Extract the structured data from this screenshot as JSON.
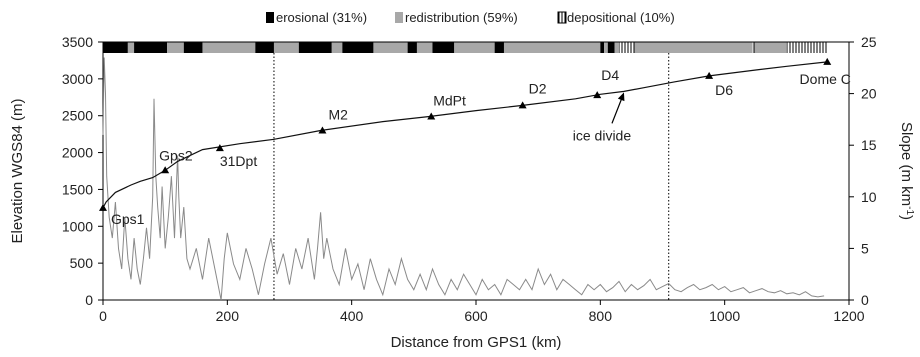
{
  "chart_data": {
    "type": "line",
    "title": "",
    "xlabel": "Distance from GPS1 (km)",
    "ylabel_left": "Elevation WGS84 (m)",
    "ylabel_right_main": "Slope (m km",
    "ylabel_right_sup": "-1",
    "ylabel_right_end": ")",
    "xlim": [
      0,
      1200
    ],
    "ylim_left": [
      0,
      3500
    ],
    "ylim_right": [
      0,
      25
    ],
    "x_ticks": [
      0,
      200,
      400,
      600,
      800,
      1000,
      1200
    ],
    "y_ticks_left": [
      0,
      500,
      1000,
      1500,
      2000,
      2500,
      3000,
      3500
    ],
    "y_ticks_right": [
      0,
      5,
      10,
      15,
      20,
      25
    ],
    "legend": {
      "position": "top-center",
      "items": [
        {
          "label": "erosional (31%)",
          "color": "#000000",
          "pattern": "solid"
        },
        {
          "label": "redistribution (59%)",
          "color": "#a8a8a8",
          "pattern": "solid"
        },
        {
          "label": "depositional (10%)",
          "color": "#ffffff",
          "pattern": "hatched"
        }
      ]
    },
    "vertical_dotted_lines": [
      275,
      910
    ],
    "series": [
      {
        "name": "",
        "axis": "left",
        "color": "#111111",
        "x": [
          0,
          5,
          20,
          45,
          60,
          80,
          100,
          120,
          160,
          220,
          275,
          350,
          450,
          525,
          600,
          675,
          760,
          800,
          838,
          870,
          920,
          975,
          1050,
          1100,
          1165
        ],
        "y": [
          1250,
          1330,
          1460,
          1560,
          1610,
          1660,
          1760,
          1880,
          2040,
          2120,
          2180,
          2300,
          2420,
          2490,
          2570,
          2640,
          2730,
          2790,
          2830,
          2880,
          2960,
          3040,
          3120,
          3170,
          3230
        ]
      },
      {
        "name": "",
        "axis": "right",
        "color": "#888888",
        "x": [
          0,
          2,
          4,
          6,
          10,
          15,
          20,
          25,
          30,
          35,
          40,
          45,
          50,
          55,
          60,
          65,
          70,
          75,
          80,
          82,
          85,
          88,
          92,
          95,
          100,
          105,
          110,
          115,
          118,
          120,
          122,
          125,
          130,
          135,
          140,
          150,
          160,
          170,
          180,
          190,
          195,
          200,
          210,
          220,
          230,
          240,
          250,
          260,
          270,
          280,
          290,
          300,
          310,
          320,
          330,
          340,
          345,
          350,
          355,
          360,
          370,
          380,
          390,
          400,
          410,
          420,
          430,
          440,
          450,
          460,
          470,
          480,
          490,
          500,
          510,
          520,
          530,
          540,
          550,
          560,
          570,
          580,
          590,
          600,
          610,
          620,
          630,
          640,
          650,
          660,
          670,
          680,
          690,
          700,
          710,
          720,
          730,
          740,
          750,
          760,
          770,
          780,
          790,
          800,
          810,
          820,
          830,
          840,
          850,
          860,
          870,
          880,
          890,
          900,
          910,
          920,
          930,
          940,
          950,
          960,
          970,
          980,
          990,
          1000,
          1010,
          1020,
          1030,
          1040,
          1050,
          1060,
          1070,
          1080,
          1090,
          1100,
          1110,
          1120,
          1130,
          1140,
          1150,
          1160
        ],
        "y": [
          16,
          23.5,
          20,
          12,
          8,
          6,
          9.5,
          5,
          3,
          8,
          4,
          2,
          6,
          3,
          1.5,
          4,
          7,
          4,
          10,
          19.5,
          12,
          9,
          6,
          11,
          5,
          8,
          12,
          6,
          11,
          14,
          10,
          6,
          9,
          4,
          3,
          5,
          2,
          6,
          3,
          0,
          4,
          6.5,
          3.5,
          2,
          5,
          3,
          0.5,
          3.5,
          6,
          2.5,
          4.5,
          1.5,
          5,
          3,
          6,
          2,
          5,
          8.5,
          4,
          6,
          3,
          1.5,
          5,
          2,
          3.5,
          1,
          4,
          2,
          0.5,
          3,
          1.5,
          4,
          2,
          1,
          2.5,
          1,
          3,
          1.5,
          0.5,
          2,
          1,
          2.5,
          1.5,
          0.5,
          2,
          1,
          1.5,
          0.5,
          2,
          1.5,
          1,
          2,
          1,
          3,
          1.5,
          2.5,
          1,
          2,
          1.5,
          1,
          0.5,
          1.5,
          1,
          1.5,
          0.8,
          1.2,
          1.8,
          0.8,
          1.5,
          1,
          1.4,
          2,
          1,
          1.3,
          1.6,
          1,
          0.8,
          1.2,
          1.5,
          1,
          1.2,
          1.5,
          1,
          1.3,
          0.8,
          1,
          1.2,
          0.7,
          0.9,
          1.1,
          0.8,
          0.7,
          0.9,
          0.6,
          0.7,
          0.5,
          0.8,
          0.4,
          0.3,
          0.4
        ]
      }
    ],
    "markers": [
      {
        "label": "Gps1",
        "x": 0,
        "y": 1250
      },
      {
        "label": "Gps2",
        "x": 100,
        "y": 1760
      },
      {
        "label": "31Dpt",
        "x": 188,
        "y": 2060
      },
      {
        "label": "M2",
        "x": 353,
        "y": 2300
      },
      {
        "label": "MdPt",
        "x": 528,
        "y": 2490
      },
      {
        "label": "D2",
        "x": 675,
        "y": 2640
      },
      {
        "label": "D4",
        "x": 795,
        "y": 2780
      },
      {
        "label": "D6",
        "x": 975,
        "y": 3040
      },
      {
        "label": "Dome C",
        "x": 1165,
        "y": 3230
      }
    ],
    "annotations": [
      {
        "text": "ice divide",
        "arrow_to_x": 838,
        "arrow_to_y": 2830
      }
    ],
    "surface_bar_segments": [
      {
        "start": 0,
        "end": 40,
        "class": "erosional"
      },
      {
        "start": 40,
        "end": 50,
        "class": "redistribution"
      },
      {
        "start": 50,
        "end": 103,
        "class": "erosional"
      },
      {
        "start": 103,
        "end": 130,
        "class": "redistribution"
      },
      {
        "start": 130,
        "end": 160,
        "class": "erosional"
      },
      {
        "start": 160,
        "end": 245,
        "class": "redistribution"
      },
      {
        "start": 245,
        "end": 275,
        "class": "erosional"
      },
      {
        "start": 275,
        "end": 315,
        "class": "redistribution"
      },
      {
        "start": 315,
        "end": 368,
        "class": "erosional"
      },
      {
        "start": 368,
        "end": 385,
        "class": "redistribution"
      },
      {
        "start": 385,
        "end": 435,
        "class": "erosional"
      },
      {
        "start": 435,
        "end": 490,
        "class": "redistribution"
      },
      {
        "start": 490,
        "end": 505,
        "class": "erosional"
      },
      {
        "start": 505,
        "end": 530,
        "class": "redistribution"
      },
      {
        "start": 530,
        "end": 565,
        "class": "erosional"
      },
      {
        "start": 565,
        "end": 630,
        "class": "redistribution"
      },
      {
        "start": 630,
        "end": 645,
        "class": "erosional"
      },
      {
        "start": 645,
        "end": 800,
        "class": "redistribution"
      },
      {
        "start": 800,
        "end": 806,
        "class": "erosional"
      },
      {
        "start": 806,
        "end": 812,
        "class": "redistribution"
      },
      {
        "start": 812,
        "end": 823,
        "class": "erosional"
      },
      {
        "start": 823,
        "end": 830,
        "class": "redistribution"
      },
      {
        "start": 830,
        "end": 855,
        "class": "depositional"
      },
      {
        "start": 855,
        "end": 1045,
        "class": "redistribution"
      },
      {
        "start": 1045,
        "end": 1048,
        "class": "depositional"
      },
      {
        "start": 1048,
        "end": 1100,
        "class": "redistribution"
      },
      {
        "start": 1100,
        "end": 1165,
        "class": "depositional"
      }
    ]
  }
}
